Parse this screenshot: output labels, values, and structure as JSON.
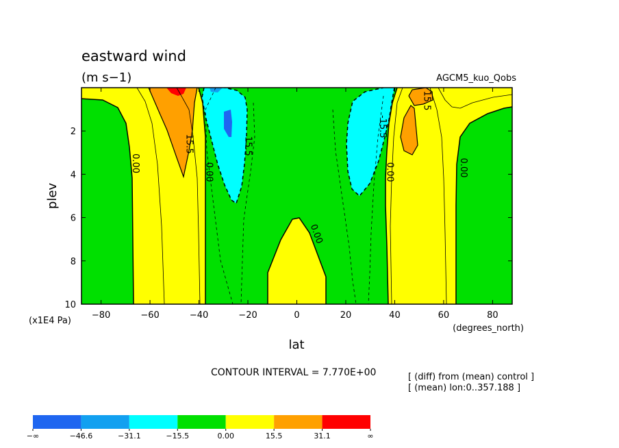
{
  "chart_data": {
    "type": "heatmap",
    "subtype": "filled-contour",
    "title": "eastward wind",
    "units": "(m s−1)",
    "experiment_label": "AGCM5_kuo_Qobs",
    "xlabel": "lat",
    "x_units": "(degrees_north)",
    "ylabel": "plev",
    "y_units": "(x1E4 Pa)",
    "xlim": [
      -88,
      88
    ],
    "ylim": [
      0,
      10
    ],
    "y_inverted": true,
    "x_ticks": [
      "−80",
      "−60",
      "−40",
      "−20",
      "0",
      "20",
      "40",
      "60",
      "80"
    ],
    "y_ticks": [
      "2",
      "4",
      "6",
      "8",
      "10"
    ],
    "contour_interval_text": "CONTOUR INTERVAL = 7.770E+00",
    "notes": [
      "[ (diff) from (mean) control ]",
      "[ (mean) lon:0..357.188 ]"
    ],
    "contour_labels": [
      {
        "text": "0.00",
        "x": -67,
        "y": 3.5
      },
      {
        "text": "15.5",
        "x": -45,
        "y": 2.6
      },
      {
        "text": "0.00",
        "x": -37,
        "y": 3.9
      },
      {
        "text": "15.5",
        "x": -21,
        "y": 2.7
      },
      {
        "text": "0.00",
        "x": 7,
        "y": 6.8
      },
      {
        "text": "-15.5",
        "x": 34,
        "y": 1.8
      },
      {
        "text": "0.00",
        "x": 37,
        "y": 3.9
      },
      {
        "text": "15.5",
        "x": 52,
        "y": 0.6
      },
      {
        "text": "0.00",
        "x": 67,
        "y": 3.7
      }
    ],
    "colorbar": {
      "colors": [
        "#1f66f0",
        "#12a0f0",
        "#00ffff",
        "#00e000",
        "#ffff00",
        "#ffa000",
        "#ff0000"
      ],
      "labels": [
        "−∞",
        "−46.6",
        "−31.1",
        "−15.5",
        "0.00",
        "15.5",
        "31.1",
        "∞"
      ]
    }
  }
}
